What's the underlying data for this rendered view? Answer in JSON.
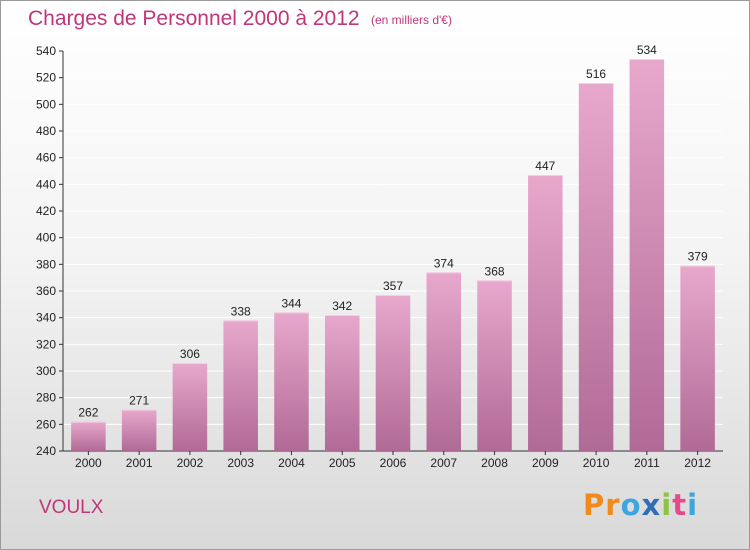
{
  "header": {
    "title": "Charges de Personnel 2000 à 2012",
    "subtitle": "(en milliers d'€)"
  },
  "footer": {
    "commune": "VOULX",
    "logo_text": "Proxiti"
  },
  "colors": {
    "title": "#c0367a",
    "bar_top": "#e8a8cc",
    "bar_bottom": "#b06a96",
    "grid": "#ffffff",
    "axis": "#333333"
  },
  "chart_data": {
    "type": "bar",
    "title": "Charges de Personnel 2000 à 2012",
    "subtitle": "(en milliers d'€)",
    "categories": [
      "2000",
      "2001",
      "2002",
      "2003",
      "2004",
      "2005",
      "2006",
      "2007",
      "2008",
      "2009",
      "2010",
      "2011",
      "2012"
    ],
    "values": [
      262,
      271,
      306,
      338,
      344,
      342,
      357,
      374,
      368,
      447,
      516,
      534,
      379
    ],
    "ylim": [
      240,
      540
    ],
    "yticks": [
      240,
      260,
      280,
      300,
      320,
      340,
      360,
      380,
      400,
      420,
      440,
      460,
      480,
      500,
      520,
      540
    ],
    "grid": true,
    "data_labels": true,
    "xlabel": "",
    "ylabel": ""
  }
}
